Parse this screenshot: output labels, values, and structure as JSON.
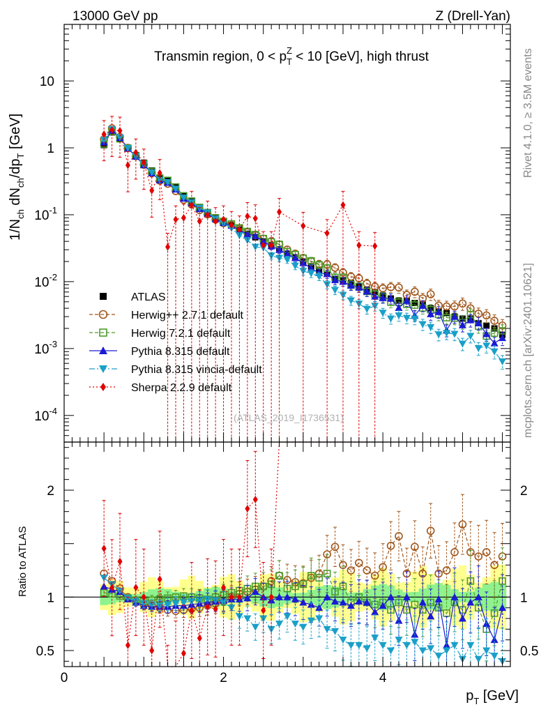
{
  "header": {
    "left": "13000 GeV pp",
    "right": "Z (Drell-Yan)"
  },
  "side_labels": {
    "rivet": "Rivet 4.1.0, ≥ 3.5M events",
    "mcplots": "mcplots.cern.ch [arXiv:2401.10621]"
  },
  "chart_data": {
    "type": "scatter",
    "title": {
      "pre": "Transmin region, 0 < p",
      "sub": "T",
      "sup": "Z",
      "post": " < 10 [GeV], high thrust"
    },
    "ylabel": {
      "p1": "1/N",
      "s1": "ch",
      "p2": " dN",
      "s2": "ch",
      "p3": "/dp",
      "s3": "T",
      "p4": " [GeV]"
    },
    "xlabel": {
      "main": "p",
      "sub": "T",
      "post": " [GeV]"
    },
    "ratio_ylabel": "Ratio to ATLAS",
    "analysis_tag": "(ATLAS_2019_I1736531)",
    "xlim": [
      0,
      5.6
    ],
    "ylim_main": [
      4e-05,
      70
    ],
    "ylim_ratio": [
      0.35,
      2.45
    ],
    "x_ticks": [
      "0",
      "2",
      "4"
    ],
    "y_ticks_main": [
      {
        "base": "10",
        "exp": "-4"
      },
      {
        "base": "10",
        "exp": "-3"
      },
      {
        "base": "10",
        "exp": "-2"
      },
      {
        "base": "10",
        "exp": "-1"
      },
      {
        "base": "1",
        "exp": ""
      },
      {
        "base": "10",
        "exp": ""
      }
    ],
    "y_ticks_ratio": [
      "0.5",
      "1",
      "2"
    ],
    "x": [
      0.5,
      0.6,
      0.7,
      0.8,
      0.9,
      1.0,
      1.1,
      1.2,
      1.3,
      1.4,
      1.5,
      1.6,
      1.7,
      1.8,
      1.9,
      2.0,
      2.1,
      2.2,
      2.3,
      2.4,
      2.5,
      2.6,
      2.7,
      2.8,
      2.9,
      3.0,
      3.1,
      3.2,
      3.3,
      3.4,
      3.5,
      3.6,
      3.7,
      3.8,
      3.9,
      4.0,
      4.1,
      4.2,
      4.3,
      4.4,
      4.5,
      4.6,
      4.7,
      4.8,
      4.9,
      5.0,
      5.1,
      5.2,
      5.3,
      5.4,
      5.5
    ],
    "ref": [
      1.1,
      1.7,
      1.35,
      1.0,
      0.78,
      0.6,
      0.46,
      0.36,
      0.33,
      0.26,
      0.19,
      0.16,
      0.13,
      0.11,
      0.09,
      0.078,
      0.07,
      0.06,
      0.052,
      0.046,
      0.04,
      0.035,
      0.03,
      0.026,
      0.023,
      0.02,
      0.017,
      0.015,
      0.013,
      0.011,
      0.0105,
      0.0095,
      0.0085,
      0.0075,
      0.007,
      0.0062,
      0.0056,
      0.0052,
      0.0052,
      0.0048,
      0.0046,
      0.004,
      0.0036,
      0.0034,
      0.003,
      0.0028,
      0.0028,
      0.0024,
      0.0022,
      0.002,
      0.0016
    ],
    "band_stat": 0.05,
    "band_total": 0.12,
    "series": [
      {
        "name": "ATLAS",
        "style": "ref",
        "color": "#000000",
        "legend_label": "ATLAS"
      },
      {
        "name": "Herwig++ 2.7.1 default",
        "style": "open-circle",
        "color": "#a0561b",
        "dash": "5,3",
        "legend_label": "Herwig++ 2.7.1 default",
        "ratio": [
          1.22,
          1.15,
          1.08,
          1.0,
          0.96,
          0.93,
          0.92,
          0.9,
          0.88,
          0.87,
          0.88,
          0.89,
          0.9,
          0.92,
          0.94,
          0.96,
          1.0,
          1.03,
          1.05,
          1.07,
          1.1,
          1.15,
          1.2,
          1.16,
          1.14,
          1.13,
          1.18,
          1.22,
          1.4,
          1.47,
          1.3,
          1.25,
          1.32,
          1.25,
          1.2,
          1.28,
          1.48,
          1.57,
          1.22,
          1.47,
          1.22,
          1.62,
          1.22,
          1.25,
          1.42,
          1.68,
          1.42,
          1.38,
          1.42,
          1.3,
          1.38
        ]
      },
      {
        "name": "Herwig 7.2.1 default",
        "style": "open-square",
        "color": "#4c9c2c",
        "dash": "5,3",
        "legend_label": "Herwig 7.2.1 default",
        "ratio": [
          1.04,
          1.03,
          1.01,
          0.99,
          0.97,
          0.96,
          0.97,
          0.98,
          0.99,
          1.0,
          1.01,
          1.0,
          0.99,
          0.98,
          1.0,
          1.02,
          1.04,
          1.06,
          1.08,
          1.1,
          1.1,
          1.12,
          1.2,
          1.08,
          1.1,
          1.12,
          1.2,
          1.18,
          1.22,
          1.05,
          1.1,
          0.95,
          1.0,
          0.95,
          0.93,
          0.95,
          0.88,
          0.95,
          0.88,
          0.93,
          0.88,
          0.95,
          0.9,
          0.85,
          0.95,
          0.88,
          1.15,
          0.9,
          0.7,
          0.85,
          1.15
        ]
      },
      {
        "name": "Pythia 8.315 default",
        "style": "up-triangle",
        "color": "#1a1ad6",
        "dash": "",
        "legend_label": "Pythia 8.315 default",
        "ratio": [
          1.1,
          1.07,
          1.05,
          0.98,
          0.95,
          0.92,
          0.91,
          0.91,
          0.91,
          0.92,
          0.92,
          0.93,
          0.94,
          0.95,
          0.96,
          0.97,
          0.98,
          0.98,
          0.99,
          1.05,
          1.0,
          0.97,
          1.0,
          1.0,
          0.98,
          0.95,
          0.93,
          0.9,
          1.0,
          0.96,
          0.95,
          0.92,
          0.96,
          0.95,
          0.86,
          0.92,
          1.0,
          0.78,
          1.0,
          0.65,
          0.95,
          0.82,
          0.98,
          0.55,
          1.0,
          0.8,
          0.95,
          1.0,
          0.75,
          0.6,
          0.9
        ]
      },
      {
        "name": "Pythia 8.315 vincia-default",
        "style": "down-triangle",
        "color": "#1aa0c8",
        "dash": "8,3,2,3",
        "legend_label": "Pythia 8.315 vincia-default",
        "ratio": [
          1.18,
          1.12,
          1.06,
          0.99,
          0.96,
          0.94,
          0.93,
          0.92,
          0.93,
          0.94,
          0.95,
          0.96,
          0.97,
          0.98,
          0.97,
          0.95,
          0.9,
          0.82,
          0.8,
          0.72,
          0.8,
          0.7,
          0.75,
          0.82,
          0.75,
          0.72,
          0.78,
          0.8,
          0.7,
          0.68,
          0.6,
          0.55,
          0.55,
          0.52,
          0.62,
          0.55,
          0.5,
          0.6,
          0.55,
          0.58,
          0.5,
          0.52,
          0.45,
          0.5,
          0.55,
          0.42,
          0.55,
          0.42,
          0.5,
          0.45,
          0.4
        ]
      },
      {
        "name": "Sherpa 2.2.9 default",
        "style": "diamond",
        "color": "#e00000",
        "dash": "2,3",
        "legend_label": "Sherpa 2.2.9 default",
        "main_x": [
          0.5,
          0.6,
          0.7,
          0.8,
          0.9,
          1.0,
          1.1,
          1.2,
          1.3,
          1.4,
          1.5,
          1.6,
          1.7,
          1.8,
          1.9,
          2.0,
          2.1,
          2.2,
          2.3,
          2.4,
          2.5,
          2.6,
          2.7,
          3.0,
          3.3,
          3.5,
          3.7,
          3.9
        ],
        "main_y": [
          1.6,
          1.85,
          1.8,
          0.55,
          0.85,
          0.6,
          0.23,
          0.42,
          0.033,
          0.085,
          0.09,
          0.14,
          0.08,
          0.1,
          0.08,
          0.085,
          0.07,
          0.06,
          0.095,
          0.088,
          0.035,
          0.035,
          0.11,
          0.068,
          0.053,
          0.14,
          0.035,
          0.034
        ]
      }
    ]
  }
}
